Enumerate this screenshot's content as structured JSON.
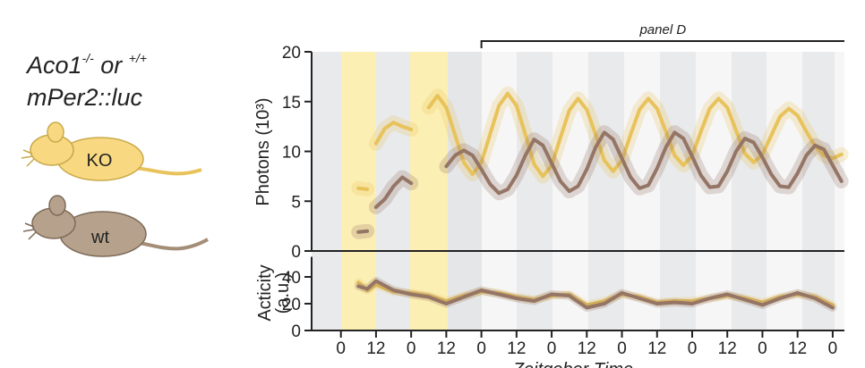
{
  "chart_data": [
    {
      "type": "line",
      "genotype": [
        "Aco1",
        "-/-",
        " or ",
        "+/+"
      ],
      "reporter": "mPer2::luc",
      "bracket_label": "panel D",
      "bracket_x": [
        48,
        172
      ],
      "ylabel": "Photons (10³)",
      "ylim": [
        0,
        20
      ],
      "yticks": [
        0,
        5,
        10,
        15,
        20
      ],
      "xlim": [
        -10,
        172
      ],
      "x": [
        6,
        9,
        10.5,
        12,
        15,
        18,
        21,
        24,
        27,
        30,
        33,
        36,
        39,
        42,
        45,
        48,
        51,
        54,
        57,
        60,
        63,
        66,
        69,
        72,
        75,
        78,
        81,
        84,
        87,
        90,
        93,
        96,
        99,
        102,
        105,
        108,
        111,
        114,
        117,
        120,
        123,
        126,
        129,
        132,
        135,
        138,
        141,
        144,
        147,
        150,
        153,
        156,
        159,
        162,
        165,
        168,
        171
      ],
      "series": [
        {
          "name": "KO",
          "color": "#e8c25a",
          "values": [
            6.3,
            6.2,
            null,
            10.8,
            12.3,
            12.9,
            12.5,
            12.2,
            null,
            14.4,
            15.6,
            14.4,
            11.65,
            8.9,
            7.7,
            8.9,
            11.75,
            14.6,
            15.8,
            14.6,
            11.7,
            8.7,
            7.5,
            8.6,
            11.4,
            14.1,
            15.3,
            14.2,
            11.7,
            9.1,
            8.0,
            9.1,
            11.7,
            14.2,
            15.3,
            14.3,
            12.0,
            9.6,
            8.6,
            9.6,
            12.0,
            14.3,
            15.3,
            14.4,
            12.1,
            9.8,
            8.9,
            9.7,
            11.6,
            13.5,
            14.3,
            13.6,
            12.0,
            10.5,
            9.6,
            9.3,
            9.7
          ]
        },
        {
          "name": "wt",
          "color": "#957565",
          "values": [
            1.9,
            2.0,
            null,
            4.4,
            5.2,
            6.5,
            7.4,
            6.8,
            null,
            null,
            null,
            8.5,
            9.6,
            10.1,
            9.6,
            8.2,
            6.7,
            5.8,
            6.2,
            7.6,
            9.6,
            11.2,
            10.6,
            8.8,
            7.0,
            6.0,
            6.5,
            8.2,
            10.4,
            11.9,
            11.2,
            9.3,
            7.4,
            6.3,
            6.6,
            8.3,
            10.4,
            11.9,
            11.3,
            9.5,
            7.6,
            6.4,
            6.5,
            8.0,
            10.0,
            11.3,
            10.9,
            9.4,
            7.7,
            6.5,
            6.4,
            7.8,
            9.6,
            10.6,
            10.2,
            8.6,
            7.0
          ]
        }
      ]
    },
    {
      "type": "line",
      "ylabel": [
        "Acticity",
        "(a.u.)"
      ],
      "xlabel": "Zeitgeber Time",
      "ylim": [
        0,
        55
      ],
      "yticks": [
        0,
        20,
        40
      ],
      "xlim": [
        -10,
        172
      ],
      "xticks": [
        {
          "value": 0,
          "label": "0"
        },
        {
          "value": 12,
          "label": "12"
        },
        {
          "value": 24,
          "label": "0"
        },
        {
          "value": 36,
          "label": "12"
        },
        {
          "value": 48,
          "label": "0"
        },
        {
          "value": 60,
          "label": "12"
        },
        {
          "value": 72,
          "label": "0"
        },
        {
          "value": 84,
          "label": "12"
        },
        {
          "value": 96,
          "label": "0"
        },
        {
          "value": 108,
          "label": "12"
        },
        {
          "value": 120,
          "label": "0"
        },
        {
          "value": 132,
          "label": "12"
        },
        {
          "value": 144,
          "label": "0"
        },
        {
          "value": 156,
          "label": "12"
        },
        {
          "value": 168,
          "label": "0"
        }
      ],
      "x": [
        6,
        9,
        12,
        18,
        24,
        30,
        36,
        42,
        48,
        54,
        60,
        66,
        72,
        78,
        84,
        90,
        96,
        102,
        108,
        114,
        120,
        126,
        132,
        138,
        144,
        150,
        156,
        162,
        168
      ],
      "series": [
        {
          "name": "KO",
          "color": "#e8c25a",
          "values": [
            36,
            30,
            34,
            29,
            28,
            26,
            22,
            26,
            29,
            28,
            25,
            23,
            26,
            27,
            19,
            22,
            27,
            25,
            21,
            22,
            22,
            24,
            26,
            24,
            21,
            25,
            27,
            25,
            19
          ]
        },
        {
          "name": "wt",
          "color": "#957565",
          "values": [
            33,
            31,
            37,
            30,
            27,
            25,
            20,
            25,
            30,
            27,
            24,
            22,
            27,
            26,
            17,
            20,
            28,
            24,
            20,
            21,
            20,
            24,
            27,
            23,
            19,
            24,
            28,
            24,
            17
          ]
        }
      ]
    }
  ]
}
